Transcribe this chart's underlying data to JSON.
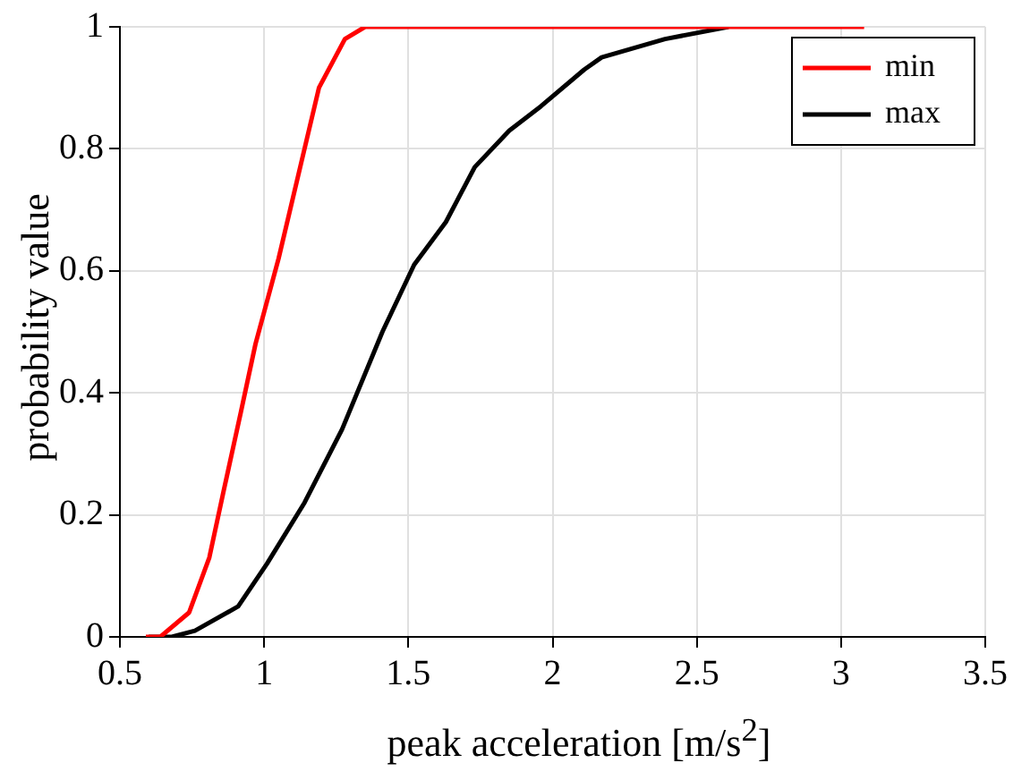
{
  "chart_data": {
    "type": "line",
    "xlabel": "peak acceleration [m/s$^{2}$]",
    "ylabel": "probability value",
    "xlim": [
      0.5,
      3.5
    ],
    "xticks": [
      0.5,
      1,
      1.5,
      2,
      2.5,
      3,
      3.5
    ],
    "ylim": [
      0,
      1
    ],
    "yticks": [
      0,
      0.2,
      0.4,
      0.6,
      0.8,
      1
    ],
    "grid": true,
    "legend": "top right",
    "marker": "none",
    "line_style": "solid",
    "series": [
      {
        "name": "min",
        "color": "#ff0000",
        "x": [
          0.59,
          0.64,
          0.74,
          0.81,
          0.86,
          0.92,
          0.97,
          1.05,
          1.13,
          1.19,
          1.28,
          1.35,
          3.08
        ],
        "values": [
          0,
          0,
          0.04,
          0.13,
          0.24,
          0.37,
          0.48,
          0.62,
          0.78,
          0.9,
          0.98,
          1,
          1
        ]
      },
      {
        "name": "max",
        "color": "#000000",
        "x": [
          0.6,
          0.68,
          0.76,
          0.91,
          1.01,
          1.14,
          1.27,
          1.41,
          1.52,
          1.63,
          1.73,
          1.85,
          1.96,
          2.11,
          2.17,
          2.39,
          2.61
        ],
        "values": [
          0,
          0,
          0.01,
          0.05,
          0.12,
          0.22,
          0.34,
          0.5,
          0.61,
          0.68,
          0.77,
          0.83,
          0.87,
          0.93,
          0.95,
          0.98,
          1
        ]
      }
    ]
  }
}
